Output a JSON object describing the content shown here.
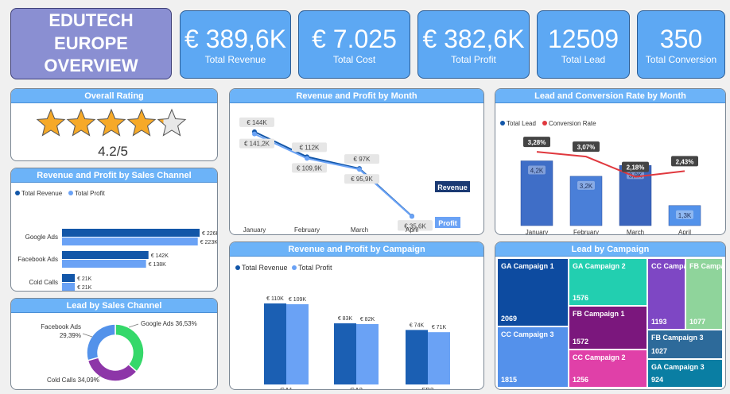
{
  "title": {
    "line1": "EDUTECH EUROPE",
    "line2": "OVERVIEW"
  },
  "kpis": [
    {
      "value": "€ 389,6K",
      "label": "Total Revenue"
    },
    {
      "value": "€ 7.025",
      "label": "Total Cost"
    },
    {
      "value": "€ 382,6K",
      "label": "Total Profit"
    },
    {
      "value": "12509",
      "label": "Total Lead"
    },
    {
      "value": "350",
      "label": "Total Conversion"
    }
  ],
  "rating": {
    "title": "Overall Rating",
    "value": 4.2,
    "max": 5,
    "label": "4.2/5"
  },
  "colors": {
    "revenue": "#1256a8",
    "profit": "#6aa2f5",
    "lead_bar": "#3f6ec7",
    "conversion": "#e0383e"
  },
  "chart_data": [
    {
      "id": "rev_profit_month",
      "type": "line",
      "title": "Revenue and Profit by Month",
      "categories": [
        "January",
        "February",
        "March",
        "April"
      ],
      "series": [
        {
          "name": "Revenue",
          "values": [
            144,
            112,
            97,
            36
          ],
          "labels": [
            "€ 144K",
            "€ 112K",
            "€ 97K",
            "€ 36K"
          ]
        },
        {
          "name": "Profit",
          "values": [
            141.2,
            109.9,
            95.9,
            35.6
          ],
          "labels": [
            "€ 141,2K",
            "€ 109,9K",
            "€ 95,9K",
            "€ 35,6K"
          ]
        }
      ]
    },
    {
      "id": "lead_conv_month",
      "type": "bar",
      "title": "Lead and Conversion Rate by Month",
      "categories": [
        "January",
        "February",
        "March",
        "April"
      ],
      "series": [
        {
          "name": "Total Lead",
          "values": [
            4200,
            3200,
            3900,
            1300
          ],
          "labels": [
            "4,2K",
            "3,2K",
            "3,9K",
            "1,3K"
          ]
        },
        {
          "name": "Conversion Rate",
          "values": [
            3.28,
            3.07,
            2.18,
            2.43
          ],
          "labels": [
            "3,28%",
            "3,07%",
            "2,18%",
            "2,43%"
          ]
        }
      ]
    },
    {
      "id": "rev_profit_channel",
      "type": "bar",
      "title": "Revenue and Profit by Sales Channel",
      "categories": [
        "Google Ads",
        "Facebook Ads",
        "Cold Calls"
      ],
      "series": [
        {
          "name": "Total Revenue",
          "values": [
            226,
            142,
            21
          ],
          "labels": [
            "€ 226K",
            "€ 142K",
            "€ 21K"
          ]
        },
        {
          "name": "Total Profit",
          "values": [
            223,
            138,
            21
          ],
          "labels": [
            "€ 223K",
            "€ 138K",
            "€ 21K"
          ]
        }
      ]
    },
    {
      "id": "rev_profit_campaign",
      "type": "bar",
      "title": "Revenue and Profit by Campaign",
      "categories": [
        "GA1",
        "GA2",
        "FB2"
      ],
      "series": [
        {
          "name": "Total Revenue",
          "values": [
            110,
            83,
            74
          ],
          "labels": [
            "€ 110K",
            "€ 83K",
            "€ 74K"
          ]
        },
        {
          "name": "Total Profit",
          "values": [
            109,
            82,
            71
          ],
          "labels": [
            "€ 109K",
            "€ 82K",
            "€ 71K"
          ]
        }
      ]
    },
    {
      "id": "lead_channel",
      "type": "pie",
      "title": "Lead by Sales Channel",
      "slices": [
        {
          "name": "Google Ads",
          "value": 36.53,
          "label": "Google Ads 36,53%",
          "color": "#35d86a"
        },
        {
          "name": "Cold Calls",
          "value": 34.09,
          "label": "Cold Calls 34,09%",
          "color": "#8d36a8"
        },
        {
          "name": "Facebook Ads",
          "value": 29.39,
          "label": "Facebook Ads 29,39%",
          "color": "#5392ea"
        }
      ]
    },
    {
      "id": "lead_campaign",
      "type": "heatmap",
      "title": "Lead by Campaign",
      "items": [
        {
          "name": "GA Campaign 1",
          "value": 2069,
          "color": "#0d4ba0"
        },
        {
          "name": "GA Campaign 2",
          "value": 1576,
          "color": "#22cfb0"
        },
        {
          "name": "CC Campaign 3",
          "value": 1815,
          "color": "#5491eb"
        },
        {
          "name": "FB Campaign 1",
          "value": 1572,
          "color": "#7b177d"
        },
        {
          "name": "CC Campaign 2",
          "value": 1256,
          "color": "#e040a8"
        },
        {
          "name": "CC Campaign 1",
          "value": 1193,
          "color": "#7e47c4"
        },
        {
          "name": "FB Campaign 2",
          "value": 1077,
          "color": "#8fd49b"
        },
        {
          "name": "FB Campaign 3",
          "value": 1027,
          "color": "#2d6a9a"
        },
        {
          "name": "GA Campaign 3",
          "value": 924,
          "color": "#0a7ea3"
        }
      ]
    }
  ]
}
